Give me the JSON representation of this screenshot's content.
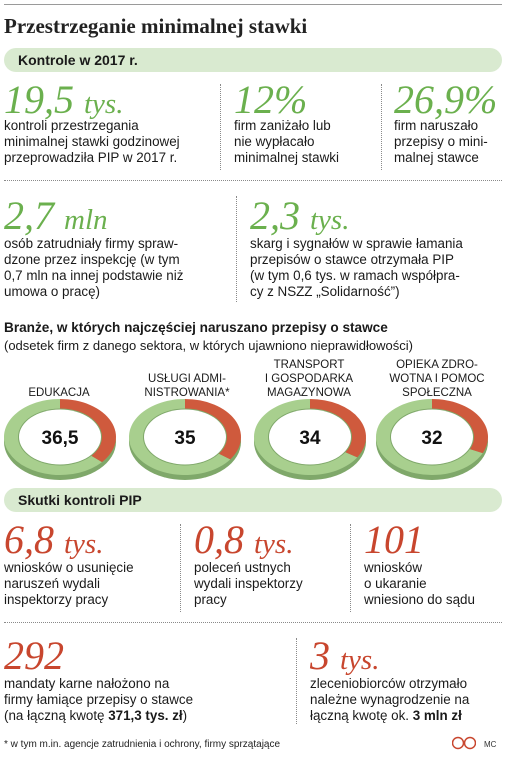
{
  "title": "Przestrzeganie minimalnej stawki",
  "section1": {
    "label": "Kontrole w 2017 r.",
    "stats": [
      {
        "value": "19,5",
        "unit": "tys.",
        "lines": [
          "kontroli przestrzegania",
          "minimalnej stawki godzinowej",
          "przeprowadziła PIP w 2017 r."
        ]
      },
      {
        "value": "12%",
        "unit": "",
        "lines": [
          "firm zaniżało lub",
          "nie wypłacało",
          "minimalnej stawki"
        ]
      },
      {
        "value": "26,9%",
        "unit": "",
        "lines": [
          "firm naruszało",
          "przepisy o mini-",
          "malnej stawce"
        ]
      },
      {
        "value": "2,7",
        "unit": "mln",
        "lines": [
          "osób zatrudniały firmy spraw-",
          "dzone przez inspekcję (w tym",
          "0,7 mln na innej podstawie niż",
          "umowa o pracę)"
        ]
      },
      {
        "value": "2,3",
        "unit": "tys.",
        "lines": [
          "skarg i sygnałów w sprawie łamania",
          "przepisów o stawce otrzymała PIP",
          "(w tym 0,6 tys. w ramach współpra-",
          "cy z NSZZ „Solidarność”)"
        ]
      }
    ]
  },
  "industries": {
    "title": "Branże, w których najczęściej naruszano przepisy o stawce",
    "subtitle": "(odsetek firm z danego sektora, w których ujawniono nieprawidłowości)"
  },
  "chart_data": {
    "type": "pie",
    "unit": "%",
    "categories": [
      [
        "EDUKACJA"
      ],
      [
        "USŁUGI ADMI-",
        "NISTROWANIA*"
      ],
      [
        "TRANSPORT",
        "I GOSPODARKA",
        "MAGAZYNOWA"
      ],
      [
        "OPIEKA ZDRO-",
        "WOTNA I POMOC",
        "SPOŁECZNA"
      ]
    ],
    "values": [
      36.5,
      35,
      34,
      32
    ],
    "value_labels": [
      "36,5",
      "35",
      "34",
      "32"
    ],
    "colors": {
      "share": "#cf5a3d",
      "rest": "#a8cf8e"
    }
  },
  "section2": {
    "label": "Skutki kontroli PIP",
    "stats": [
      {
        "value": "6,8",
        "unit": "tys.",
        "lines": [
          "wniosków o usunięcie",
          "naruszeń wydali",
          "inspektorzy pracy"
        ]
      },
      {
        "value": "0,8",
        "unit": "tys.",
        "lines": [
          "poleceń ustnych",
          "wydali inspektorzy",
          "pracy"
        ]
      },
      {
        "value": "101",
        "unit": "",
        "lines": [
          "wniosków",
          "o ukaranie",
          "wniesiono do sądu"
        ]
      },
      {
        "value": "292",
        "unit": "",
        "lines": [
          "mandaty karne nałożono na",
          "firmy łamiące przepisy o stawce"
        ],
        "last_prefix": "(na łączną kwotę ",
        "last_bold": "371,3 tys. zł",
        "last_suffix": ")"
      },
      {
        "value": "3",
        "unit": "tys.",
        "lines": [
          "zleceniobiorców otrzymało",
          "należne wynagrodzenie na"
        ],
        "last_prefix": "łączną kwotę ok. ",
        "last_bold": "3 mln zł",
        "last_suffix": ""
      }
    ]
  },
  "footnote": "* w tym m.in. agencje zatrudnienia i ochrony, firmy sprzątające",
  "credit": "MC"
}
